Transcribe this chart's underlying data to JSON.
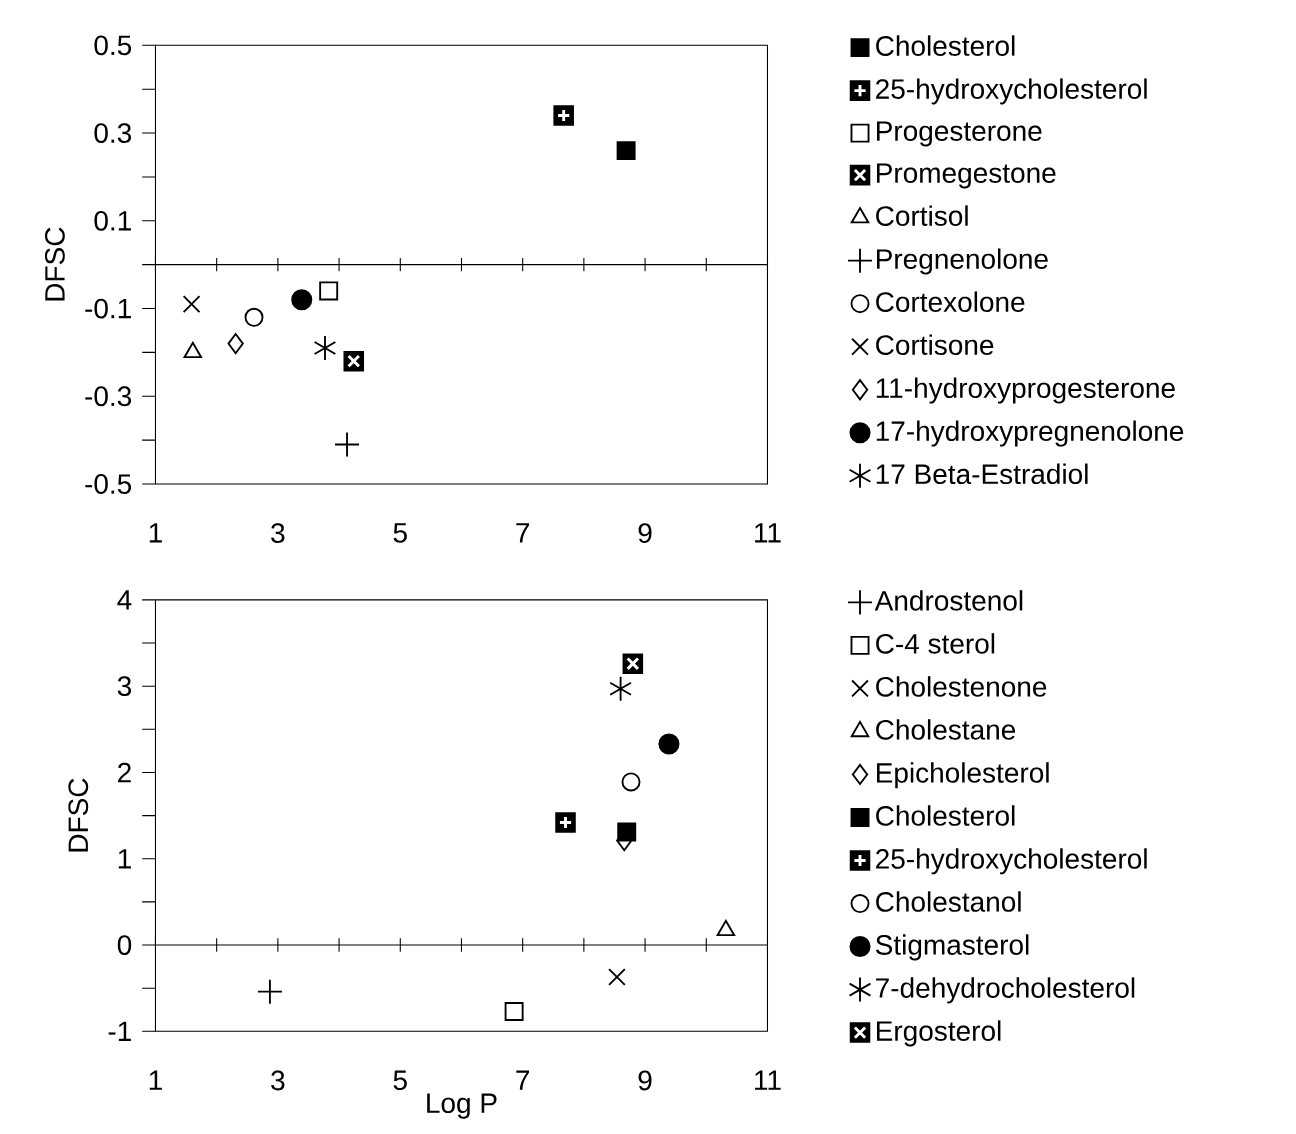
{
  "chart_data": [
    {
      "type": "scatter",
      "ylabel": "DFSC",
      "xlim": [
        1,
        11
      ],
      "ylim": [
        -0.5,
        0.5
      ],
      "xticks": [
        1,
        {
          "value": 2,
          "label": null
        },
        3,
        {
          "value": 4,
          "label": null
        },
        5,
        {
          "value": 6,
          "label": null
        },
        7,
        {
          "value": 8,
          "label": null
        },
        9,
        {
          "value": 10,
          "label": null
        },
        11
      ],
      "yticks": [
        -0.5,
        {
          "value": -0.4,
          "label": null
        },
        -0.3,
        {
          "value": -0.2,
          "label": null
        },
        -0.1,
        {
          "value": 0,
          "label": null
        },
        0.1,
        {
          "value": 0.2,
          "label": null
        },
        0.3,
        {
          "value": 0.4,
          "label": null
        },
        0.5
      ],
      "legend": "right",
      "ref_lines": [
        {
          "axis": "y",
          "value": 0
        }
      ],
      "series": [
        {
          "name": "Cholesterol",
          "color": "#000000",
          "marker": "square",
          "x": [
            8.69
          ],
          "values": [
            0.26
          ]
        },
        {
          "name": "25-hydroxycholesterol",
          "color": "#000000",
          "marker": "square",
          "x": [
            7.67
          ],
          "values": [
            0.34
          ]
        },
        {
          "name": "Progesterone",
          "color": "#000000",
          "marker": "square",
          "x": [
            3.83
          ],
          "values": [
            -0.06
          ]
        },
        {
          "name": "Promegestone",
          "color": "#000000",
          "marker": "square",
          "x": [
            4.24
          ],
          "values": [
            -0.22
          ]
        },
        {
          "name": "Cortisol",
          "color": "#000000",
          "marker": "triangle",
          "x": [
            1.61
          ],
          "values": [
            -0.2
          ]
        },
        {
          "name": "Pregnenolone",
          "color": "#000000",
          "marker": "cross",
          "x": [
            4.13
          ],
          "values": [
            -0.41
          ]
        },
        {
          "name": "Cortexolone",
          "color": "#000000",
          "marker": "circle",
          "x": [
            2.61
          ],
          "values": [
            -0.12
          ]
        },
        {
          "name": "Cortisone",
          "color": "#000000",
          "marker": "cross",
          "x": [
            1.59
          ],
          "values": [
            -0.09
          ]
        },
        {
          "name": "11-hydroxyprogesterone",
          "color": "#000000",
          "marker": "diamond",
          "x": [
            2.31
          ],
          "values": [
            -0.18
          ]
        },
        {
          "name": "17-hydroxypregnenolone",
          "color": "#000000",
          "marker": "circle",
          "x": [
            3.39
          ],
          "values": [
            -0.08
          ]
        },
        {
          "name": "17 Beta-Estradiol",
          "color": "#000000",
          "marker": "cross",
          "x": [
            3.77
          ],
          "values": [
            -0.19
          ]
        }
      ]
    },
    {
      "type": "scatter",
      "xlabel": "Log P",
      "ylabel": "DFSC",
      "xlim": [
        1,
        11
      ],
      "ylim": [
        -1,
        4
      ],
      "xticks": [
        1,
        {
          "value": 2,
          "label": null
        },
        3,
        {
          "value": 4,
          "label": null
        },
        5,
        {
          "value": 6,
          "label": null
        },
        7,
        {
          "value": 8,
          "label": null
        },
        9,
        {
          "value": 10,
          "label": null
        },
        11
      ],
      "yticks": [
        -1,
        {
          "value": -0.5,
          "label": null
        },
        0,
        {
          "value": 0.5,
          "label": null
        },
        1,
        {
          "value": 1.5,
          "label": null
        },
        2,
        {
          "value": 2.5,
          "label": null
        },
        3,
        {
          "value": 3.5,
          "label": null
        },
        4
      ],
      "legend": "right",
      "ref_lines": [
        {
          "axis": "y",
          "value": 0
        }
      ],
      "series": [
        {
          "name": "Androstenol",
          "color": "#000000",
          "marker": "cross",
          "x": [
            2.87
          ],
          "values": [
            -0.54
          ]
        },
        {
          "name": "C-4 sterol",
          "color": "#000000",
          "marker": "square",
          "x": [
            6.86
          ],
          "values": [
            -0.77
          ]
        },
        {
          "name": "Cholestenone",
          "color": "#000000",
          "marker": "cross",
          "x": [
            8.54
          ],
          "values": [
            -0.37
          ]
        },
        {
          "name": "Cholestane",
          "color": "#000000",
          "marker": "triangle",
          "x": [
            10.32
          ],
          "values": [
            0.17
          ]
        },
        {
          "name": "Epicholesterol",
          "color": "#000000",
          "marker": "diamond",
          "x": [
            8.66
          ],
          "values": [
            1.21
          ]
        },
        {
          "name": "Cholesterol",
          "color": "#000000",
          "marker": "square",
          "x": [
            8.7
          ],
          "values": [
            1.31
          ]
        },
        {
          "name": "25-hydroxycholesterol",
          "color": "#000000",
          "marker": "square",
          "x": [
            7.7
          ],
          "values": [
            1.42
          ]
        },
        {
          "name": "Cholestanol",
          "color": "#000000",
          "marker": "circle",
          "x": [
            8.77
          ],
          "values": [
            1.89
          ]
        },
        {
          "name": "Stigmasterol",
          "color": "#000000",
          "marker": "circle",
          "x": [
            9.39
          ],
          "values": [
            2.33
          ]
        },
        {
          "name": "7-dehydrocholesterol",
          "color": "#000000",
          "marker": "cross",
          "x": [
            8.6
          ],
          "values": [
            2.97
          ]
        },
        {
          "name": "Ergosterol",
          "color": "#000000",
          "marker": "square",
          "x": [
            8.8
          ],
          "values": [
            3.26
          ]
        }
      ]
    }
  ]
}
